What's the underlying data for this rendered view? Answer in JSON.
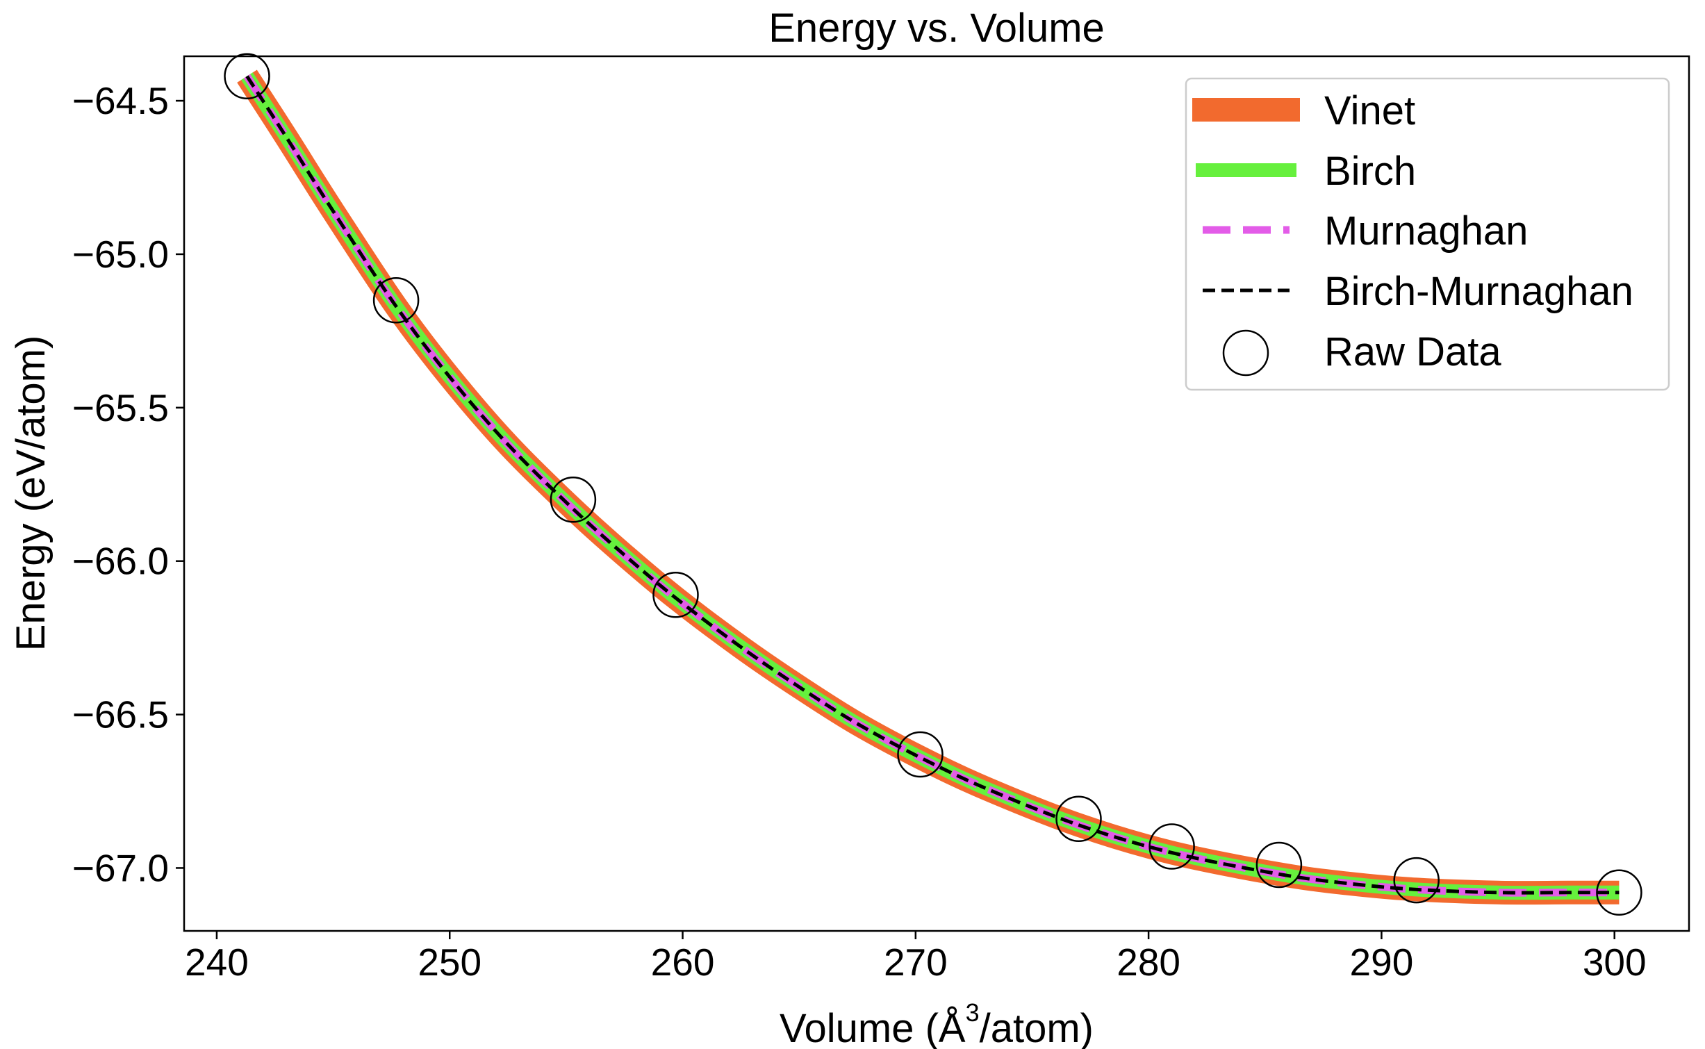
{
  "chart_data": {
    "type": "line",
    "title": "Energy vs. Volume",
    "xlabel": "Volume (Å³/atom)",
    "xlabel_parts": {
      "pre": "Volume (Å",
      "sup": "3",
      "post": "/atom)"
    },
    "ylabel": "Energy (eV/atom)",
    "xlim": [
      238.6,
      303.2
    ],
    "ylim": [
      -67.205,
      -64.355
    ],
    "xticks": [
      240,
      250,
      260,
      270,
      280,
      290,
      300
    ],
    "yticks": [
      -67.0,
      -66.5,
      -66.0,
      -65.5,
      -65.0,
      -64.5
    ],
    "xtick_labels": [
      "240",
      "250",
      "260",
      "270",
      "280",
      "290",
      "300"
    ],
    "ytick_labels": [
      "−67.0",
      "−66.5",
      "−66.0",
      "−65.5",
      "−65.0",
      "−64.5"
    ],
    "grid": false,
    "legend_position": "top-right",
    "fit_curve": {
      "x": [
        241.3,
        243.0,
        245.0,
        247.7,
        250.0,
        252.5,
        255.3,
        257.5,
        259.7,
        262.5,
        265.0,
        267.5,
        270.2,
        273.0,
        277.0,
        281.0,
        285.6,
        288.5,
        291.5,
        295.0,
        298.0,
        300.2
      ],
      "y": [
        -64.42,
        -64.62,
        -64.86,
        -65.17,
        -65.4,
        -65.62,
        -65.83,
        -65.98,
        -66.12,
        -66.28,
        -66.41,
        -66.53,
        -66.64,
        -66.74,
        -66.86,
        -66.95,
        -67.02,
        -67.05,
        -67.07,
        -67.08,
        -67.08,
        -67.08
      ]
    },
    "series": [
      {
        "name": "Vinet",
        "color": "#f26a2e",
        "style": "solid-thick"
      },
      {
        "name": "Birch",
        "color": "#66f03d",
        "style": "solid"
      },
      {
        "name": "Murnaghan",
        "color": "#e35ce8",
        "style": "dashed"
      },
      {
        "name": "Birch-Murnaghan",
        "color": "#000000",
        "style": "dashed-thin"
      }
    ],
    "raw_data": {
      "name": "Raw Data",
      "marker": "open-circle",
      "x": [
        241.3,
        247.7,
        255.3,
        259.7,
        270.2,
        277.0,
        281.0,
        285.6,
        291.5,
        300.2
      ],
      "y": [
        -64.42,
        -65.15,
        -65.8,
        -66.11,
        -66.63,
        -66.84,
        -66.93,
        -66.99,
        -67.04,
        -67.08
      ]
    }
  }
}
